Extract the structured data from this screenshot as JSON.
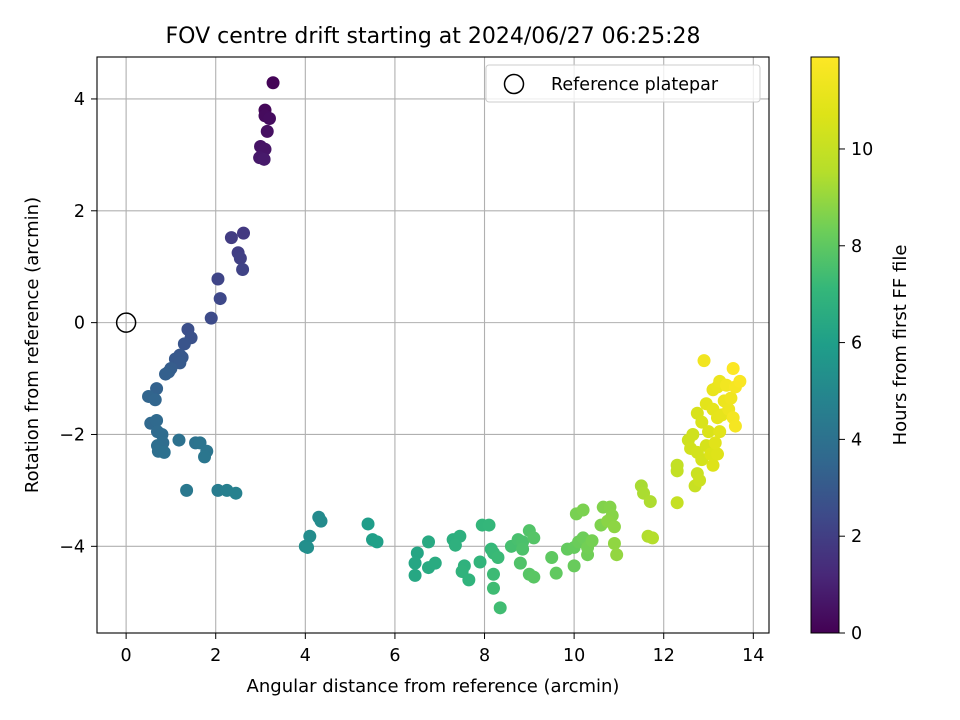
{
  "chart_data": {
    "type": "scatter",
    "title": "FOV centre drift starting at 2024/06/27 06:25:28",
    "xlabel": "Angular distance from reference (arcmin)",
    "ylabel": "Rotation from reference (arcmin)",
    "xlim": [
      -0.65,
      14.35
    ],
    "ylim": [
      -5.55,
      4.75
    ],
    "xticks": [
      0,
      2,
      4,
      6,
      8,
      10,
      12,
      14
    ],
    "yticks": [
      -4,
      -2,
      0,
      2,
      4
    ],
    "grid": true,
    "legend": {
      "position": "upper-right",
      "entries": [
        "Reference platepar"
      ]
    },
    "reference_point": {
      "x": 0,
      "y": 0,
      "label": "Reference platepar"
    },
    "colorbar": {
      "label": "Hours from first FF file",
      "colormap": "viridis",
      "range": [
        0,
        11.9
      ],
      "ticks": [
        0,
        2,
        4,
        6,
        8,
        10
      ]
    },
    "points": [
      [
        3.28,
        4.29,
        0.1
      ],
      [
        3.1,
        3.8,
        0.2
      ],
      [
        3.1,
        3.7,
        0.3
      ],
      [
        3.2,
        3.65,
        0.35
      ],
      [
        3.15,
        3.42,
        0.45
      ],
      [
        3.0,
        3.15,
        0.55
      ],
      [
        3.1,
        3.1,
        0.6
      ],
      [
        2.98,
        2.95,
        0.7
      ],
      [
        3.08,
        2.92,
        0.75
      ],
      [
        2.62,
        1.6,
        1.8
      ],
      [
        2.35,
        1.52,
        1.9
      ],
      [
        2.5,
        1.25,
        2.0
      ],
      [
        2.55,
        1.15,
        2.05
      ],
      [
        2.6,
        0.95,
        2.15
      ],
      [
        2.05,
        0.78,
        2.25
      ],
      [
        2.1,
        0.43,
        2.35
      ],
      [
        1.9,
        0.08,
        2.45
      ],
      [
        1.38,
        -0.12,
        2.6
      ],
      [
        1.45,
        -0.27,
        2.7
      ],
      [
        1.3,
        -0.38,
        2.8
      ],
      [
        1.2,
        -0.58,
        2.9
      ],
      [
        1.25,
        -0.62,
        2.95
      ],
      [
        1.1,
        -0.65,
        3.0
      ],
      [
        1.2,
        -0.72,
        3.05
      ],
      [
        1.0,
        -0.82,
        3.15
      ],
      [
        0.95,
        -0.88,
        3.2
      ],
      [
        0.88,
        -0.92,
        3.25
      ],
      [
        0.68,
        -1.18,
        3.35
      ],
      [
        0.5,
        -1.32,
        3.45
      ],
      [
        0.65,
        -1.38,
        3.5
      ],
      [
        0.55,
        -1.8,
        3.6
      ],
      [
        0.68,
        -1.75,
        3.65
      ],
      [
        0.7,
        -1.95,
        3.7
      ],
      [
        0.8,
        -2.0,
        3.75
      ],
      [
        0.82,
        -2.15,
        3.8
      ],
      [
        0.7,
        -2.2,
        3.85
      ],
      [
        0.72,
        -2.3,
        3.9
      ],
      [
        0.85,
        -2.32,
        3.95
      ],
      [
        1.18,
        -2.1,
        4.0
      ],
      [
        1.55,
        -2.15,
        4.05
      ],
      [
        1.65,
        -2.15,
        4.1
      ],
      [
        1.8,
        -2.3,
        4.15
      ],
      [
        1.75,
        -2.4,
        4.2
      ],
      [
        1.35,
        -3.0,
        4.3
      ],
      [
        2.05,
        -3.0,
        4.5
      ],
      [
        2.25,
        -3.0,
        4.6
      ],
      [
        2.45,
        -3.05,
        4.7
      ],
      [
        4.3,
        -3.48,
        5.1
      ],
      [
        4.35,
        -3.55,
        5.15
      ],
      [
        4.1,
        -3.82,
        5.2
      ],
      [
        4.0,
        -4.0,
        5.25
      ],
      [
        4.05,
        -4.02,
        5.3
      ],
      [
        5.4,
        -3.6,
        5.9
      ],
      [
        5.5,
        -3.88,
        6.0
      ],
      [
        5.6,
        -3.92,
        6.05
      ],
      [
        6.5,
        -4.12,
        6.3
      ],
      [
        6.45,
        -4.3,
        6.35
      ],
      [
        6.45,
        -4.52,
        6.4
      ],
      [
        6.75,
        -3.92,
        6.45
      ],
      [
        6.75,
        -4.38,
        6.5
      ],
      [
        6.9,
        -4.3,
        6.55
      ],
      [
        7.3,
        -3.88,
        6.7
      ],
      [
        7.45,
        -3.82,
        6.75
      ],
      [
        7.35,
        -3.98,
        6.8
      ],
      [
        7.55,
        -4.35,
        6.85
      ],
      [
        7.5,
        -4.45,
        6.9
      ],
      [
        7.65,
        -4.6,
        6.95
      ],
      [
        7.9,
        -4.28,
        7.0
      ],
      [
        7.95,
        -3.62,
        7.05
      ],
      [
        8.1,
        -3.62,
        7.1
      ],
      [
        8.15,
        -4.05,
        7.15
      ],
      [
        8.2,
        -4.12,
        7.2
      ],
      [
        8.3,
        -4.2,
        7.25
      ],
      [
        8.2,
        -4.5,
        7.3
      ],
      [
        8.2,
        -4.75,
        7.35
      ],
      [
        8.35,
        -5.1,
        7.4
      ],
      [
        8.6,
        -4.0,
        7.5
      ],
      [
        8.75,
        -3.88,
        7.55
      ],
      [
        8.85,
        -3.92,
        7.6
      ],
      [
        8.85,
        -4.05,
        7.65
      ],
      [
        8.8,
        -4.3,
        7.7
      ],
      [
        9.0,
        -3.72,
        7.75
      ],
      [
        9.1,
        -3.85,
        7.8
      ],
      [
        9.0,
        -4.5,
        7.85
      ],
      [
        9.1,
        -4.55,
        7.9
      ],
      [
        9.5,
        -4.2,
        8.0
      ],
      [
        9.6,
        -4.48,
        8.05
      ],
      [
        9.85,
        -4.05,
        8.1
      ],
      [
        10.0,
        -4.02,
        8.15
      ],
      [
        10.0,
        -4.35,
        8.2
      ],
      [
        10.1,
        -3.92,
        8.25
      ],
      [
        10.2,
        -3.85,
        8.3
      ],
      [
        10.3,
        -4.15,
        8.35
      ],
      [
        10.3,
        -4.02,
        8.4
      ],
      [
        10.4,
        -3.9,
        8.45
      ],
      [
        10.05,
        -3.42,
        8.5
      ],
      [
        10.2,
        -3.35,
        8.55
      ],
      [
        10.6,
        -3.62,
        8.6
      ],
      [
        10.65,
        -3.3,
        8.65
      ],
      [
        10.8,
        -3.3,
        8.7
      ],
      [
        10.85,
        -3.45,
        8.75
      ],
      [
        10.75,
        -3.55,
        8.8
      ],
      [
        10.9,
        -3.65,
        8.85
      ],
      [
        10.9,
        -3.95,
        8.9
      ],
      [
        10.95,
        -4.15,
        8.95
      ],
      [
        11.5,
        -2.92,
        9.3
      ],
      [
        11.55,
        -3.05,
        9.35
      ],
      [
        11.7,
        -3.2,
        9.4
      ],
      [
        11.65,
        -3.82,
        9.45
      ],
      [
        11.75,
        -3.85,
        9.5
      ],
      [
        12.3,
        -2.55,
        9.9
      ],
      [
        12.3,
        -2.65,
        9.95
      ],
      [
        12.3,
        -3.22,
        10.0
      ],
      [
        12.7,
        -2.92,
        10.1
      ],
      [
        12.75,
        -2.7,
        10.15
      ],
      [
        12.8,
        -2.82,
        10.2
      ],
      [
        12.55,
        -2.1,
        10.25
      ],
      [
        12.65,
        -2.0,
        10.3
      ],
      [
        12.6,
        -2.25,
        10.35
      ],
      [
        12.75,
        -2.32,
        10.4
      ],
      [
        12.85,
        -2.45,
        10.45
      ],
      [
        12.95,
        -2.2,
        10.5
      ],
      [
        12.75,
        -1.62,
        10.55
      ],
      [
        12.85,
        -1.78,
        10.6
      ],
      [
        13.0,
        -1.95,
        10.65
      ],
      [
        13.05,
        -2.35,
        10.7
      ],
      [
        13.1,
        -2.55,
        10.75
      ],
      [
        13.2,
        -2.35,
        10.8
      ],
      [
        13.15,
        -2.15,
        10.85
      ],
      [
        13.25,
        -1.95,
        10.9
      ],
      [
        12.95,
        -1.45,
        10.95
      ],
      [
        13.1,
        -1.55,
        11.0
      ],
      [
        13.2,
        -1.7,
        11.05
      ],
      [
        13.3,
        -1.65,
        11.1
      ],
      [
        13.1,
        -1.2,
        11.15
      ],
      [
        13.2,
        -1.15,
        11.2
      ],
      [
        13.25,
        -1.05,
        11.25
      ],
      [
        13.35,
        -1.4,
        11.3
      ],
      [
        13.45,
        -1.55,
        11.35
      ],
      [
        13.5,
        -1.35,
        11.4
      ],
      [
        12.9,
        -0.68,
        11.45
      ],
      [
        13.4,
        -1.12,
        11.5
      ],
      [
        13.55,
        -1.7,
        11.55
      ],
      [
        13.6,
        -1.85,
        11.6
      ],
      [
        13.6,
        -1.15,
        11.65
      ],
      [
        13.7,
        -1.05,
        11.75
      ],
      [
        13.55,
        -0.82,
        11.85
      ]
    ]
  }
}
